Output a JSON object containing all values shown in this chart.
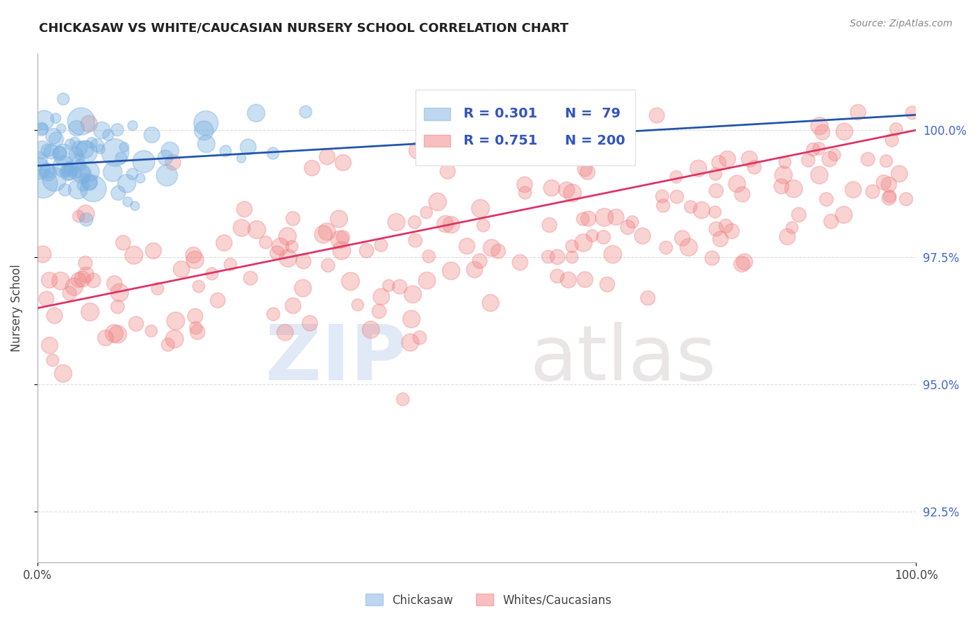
{
  "title": "CHICKASAW VS WHITE/CAUCASIAN NURSERY SCHOOL CORRELATION CHART",
  "source": "Source: ZipAtlas.com",
  "ylabel": "Nursery School",
  "xlim": [
    0,
    100
  ],
  "ylim": [
    91.5,
    101.5
  ],
  "yticks": [
    92.5,
    95.0,
    97.5,
    100.0
  ],
  "ytick_labels": [
    "92.5%",
    "95.0%",
    "97.5%",
    "100.0%"
  ],
  "xtick_labels": [
    "0.0%",
    "100.0%"
  ],
  "blue_color": "#7ab0e0",
  "pink_color": "#f08080",
  "blue_line_color": "#2255aa",
  "pink_line_color": "#dd3366",
  "legend_r_blue": "R = 0.301",
  "legend_n_blue": "N =  79",
  "legend_r_pink": "R = 0.751",
  "legend_n_pink": "N = 200",
  "watermark_zip": "ZIP",
  "watermark_atlas": "atlas",
  "blue_R": 0.301,
  "pink_R": 0.751,
  "blue_N": 79,
  "pink_N": 200
}
